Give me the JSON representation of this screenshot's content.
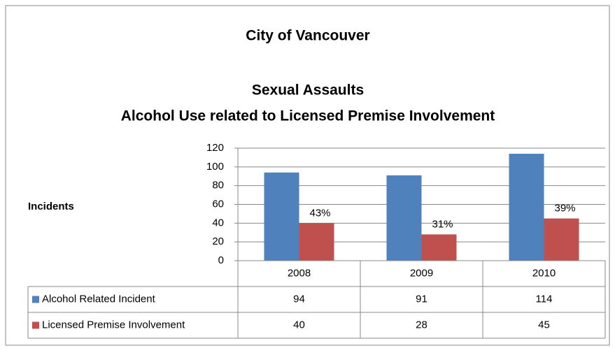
{
  "chart_data": {
    "type": "bar",
    "title": "City of Vancouver",
    "subtitle": [
      "Sexual Assaults",
      "Alcohol Use related to Licensed Premise Involvement"
    ],
    "y_label": "Incidents",
    "categories": [
      "2008",
      "2009",
      "2010"
    ],
    "series": [
      {
        "name": "Alcohol Related Incident",
        "color": "#4f81bd",
        "values": [
          94,
          91,
          114
        ]
      },
      {
        "name": "Licensed Premise Involvement",
        "color": "#c0504d",
        "values": [
          40,
          28,
          45
        ]
      }
    ],
    "annotations": [
      "43%",
      "31%",
      "39%"
    ],
    "ylim": [
      0,
      120
    ],
    "yticks": [
      0,
      20,
      40,
      60,
      80,
      100,
      120
    ],
    "grid": true
  }
}
